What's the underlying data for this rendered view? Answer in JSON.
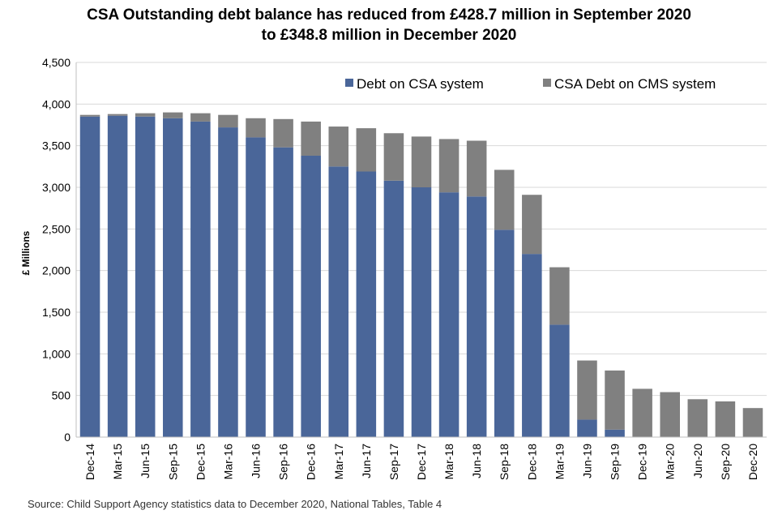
{
  "chart_data": {
    "type": "bar",
    "stacked": true,
    "title_line1": "CSA Outstanding debt balance has reduced from £428.7 million in September 2020",
    "title_line2": "to £348.8 million in December 2020",
    "xlabel": "",
    "ylabel": "£ Millions",
    "ylim": [
      0,
      4500
    ],
    "yticks": [
      "0",
      "500",
      "1,000",
      "1,500",
      "2,000",
      "2,500",
      "3,000",
      "3,500",
      "4,000",
      "4,500"
    ],
    "ytick_values": [
      0,
      500,
      1000,
      1500,
      2000,
      2500,
      3000,
      3500,
      4000,
      4500
    ],
    "grid": true,
    "legend_position": "top-right",
    "categories": [
      "Dec-14",
      "Mar-15",
      "Jun-15",
      "Sep-15",
      "Dec-15",
      "Mar-16",
      "Jun-16",
      "Sep-16",
      "Dec-16",
      "Mar-17",
      "Jun-17",
      "Sep-17",
      "Dec-17",
      "Mar-18",
      "Jun-18",
      "Sep-18",
      "Dec-18",
      "Mar-19",
      "Jun-19",
      "Sep-19",
      "Dec-19",
      "Mar-20",
      "Jun-20",
      "Sep-20",
      "Dec-20"
    ],
    "series": [
      {
        "name": "Debt on CSA system",
        "color": "#4a6699",
        "values": [
          3850,
          3860,
          3850,
          3830,
          3790,
          3720,
          3600,
          3480,
          3380,
          3250,
          3190,
          3080,
          3000,
          2940,
          2890,
          2490,
          2200,
          1350,
          210,
          90,
          0,
          0,
          0,
          0,
          0
        ]
      },
      {
        "name": "CSA Debt on CMS system",
        "color": "#808080",
        "values": [
          20,
          20,
          40,
          70,
          100,
          150,
          230,
          340,
          410,
          480,
          520,
          570,
          610,
          640,
          670,
          720,
          710,
          690,
          710,
          710,
          580,
          540,
          455,
          428.7,
          348.8
        ]
      }
    ]
  },
  "source": "Source: Child Support Agency statistics data to December 2020, National Tables, Table 4"
}
